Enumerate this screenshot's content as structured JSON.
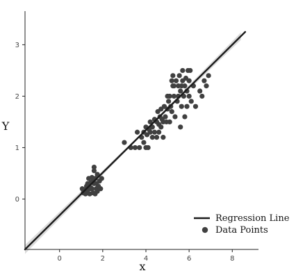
{
  "chart_data": {
    "type": "scatter",
    "title": "",
    "xlabel": "x",
    "ylabel": "Y",
    "xlim": [
      -1.6,
      9.6
    ],
    "ylim": [
      -0.98,
      3.6
    ],
    "x_ticks": [
      0,
      2,
      4,
      6,
      8
    ],
    "y_ticks": [
      0,
      1,
      2,
      3
    ],
    "grid": false,
    "legend_position": "bottom-right",
    "colors": {
      "points": "#404040",
      "line": "#1a1a1a",
      "band": "#bdbdbd"
    },
    "series": [
      {
        "name": "Regression Line",
        "kind": "line",
        "x": [
          -1.6,
          8.6
        ],
        "y": [
          -0.98,
          3.25
        ]
      },
      {
        "name": "Data Points",
        "kind": "scatter",
        "points": [
          [
            1.05,
            0.2
          ],
          [
            1.1,
            0.12
          ],
          [
            1.2,
            0.18
          ],
          [
            1.25,
            0.25
          ],
          [
            1.3,
            0.3
          ],
          [
            1.3,
            0.12
          ],
          [
            1.35,
            0.4
          ],
          [
            1.4,
            0.2
          ],
          [
            1.4,
            0.1
          ],
          [
            1.45,
            0.32
          ],
          [
            1.5,
            0.2
          ],
          [
            1.5,
            0.42
          ],
          [
            1.55,
            0.12
          ],
          [
            1.6,
            0.3
          ],
          [
            1.6,
            0.55
          ],
          [
            1.65,
            0.4
          ],
          [
            1.7,
            0.2
          ],
          [
            1.7,
            0.3
          ],
          [
            1.75,
            0.48
          ],
          [
            1.8,
            0.25
          ],
          [
            1.85,
            0.35
          ],
          [
            1.9,
            0.2
          ],
          [
            1.95,
            0.4
          ],
          [
            1.6,
            0.62
          ],
          [
            1.45,
            0.22
          ],
          [
            1.3,
            0.22
          ],
          [
            1.55,
            0.35
          ],
          [
            1.75,
            0.15
          ],
          [
            1.2,
            0.1
          ],
          [
            1.65,
            0.1
          ],
          [
            3.0,
            1.1
          ],
          [
            3.3,
            1.0
          ],
          [
            3.5,
            1.0
          ],
          [
            3.6,
            1.3
          ],
          [
            3.7,
            1.0
          ],
          [
            3.8,
            1.2
          ],
          [
            3.9,
            1.1
          ],
          [
            3.9,
            1.3
          ],
          [
            4.0,
            1.0
          ],
          [
            4.0,
            1.4
          ],
          [
            4.05,
            1.25
          ],
          [
            4.1,
            1.0
          ],
          [
            4.15,
            1.35
          ],
          [
            4.2,
            1.3
          ],
          [
            4.2,
            1.5
          ],
          [
            4.3,
            1.2
          ],
          [
            4.3,
            1.4
          ],
          [
            4.4,
            1.3
          ],
          [
            4.4,
            1.55
          ],
          [
            4.5,
            1.2
          ],
          [
            4.5,
            1.5
          ],
          [
            4.55,
            1.7
          ],
          [
            4.6,
            1.3
          ],
          [
            4.6,
            1.45
          ],
          [
            4.65,
            1.6
          ],
          [
            4.7,
            1.4
          ],
          [
            4.7,
            1.75
          ],
          [
            4.75,
            1.55
          ],
          [
            4.8,
            1.2
          ],
          [
            4.8,
            1.5
          ],
          [
            4.85,
            1.8
          ],
          [
            4.9,
            1.6
          ],
          [
            4.95,
            1.5
          ],
          [
            5.0,
            2.0
          ],
          [
            5.0,
            1.75
          ],
          [
            5.05,
            1.9
          ],
          [
            5.1,
            1.5
          ],
          [
            5.1,
            2.0
          ],
          [
            5.15,
            1.8
          ],
          [
            5.2,
            1.7
          ],
          [
            5.2,
            2.3
          ],
          [
            5.25,
            2.4
          ],
          [
            5.3,
            2.0
          ],
          [
            5.3,
            2.2
          ],
          [
            5.35,
            1.6
          ],
          [
            5.4,
            2.3
          ],
          [
            5.45,
            1.9
          ],
          [
            5.5,
            2.0
          ],
          [
            5.5,
            2.2
          ],
          [
            5.55,
            2.4
          ],
          [
            5.6,
            1.4
          ],
          [
            5.6,
            2.1
          ],
          [
            5.65,
            1.8
          ],
          [
            5.7,
            2.3
          ],
          [
            5.7,
            2.5
          ],
          [
            5.75,
            2.0
          ],
          [
            5.8,
            1.6
          ],
          [
            5.8,
            2.2
          ],
          [
            5.85,
            2.35
          ],
          [
            5.9,
            1.8
          ],
          [
            5.9,
            2.1
          ],
          [
            5.95,
            2.5
          ],
          [
            6.0,
            2.0
          ],
          [
            6.0,
            2.3
          ],
          [
            6.1,
            1.9
          ],
          [
            6.2,
            2.2
          ],
          [
            6.3,
            1.8
          ],
          [
            6.5,
            2.1
          ],
          [
            6.6,
            2.0
          ],
          [
            6.7,
            2.3
          ],
          [
            6.8,
            2.2
          ],
          [
            6.9,
            2.4
          ],
          [
            5.25,
            2.2
          ],
          [
            5.65,
            2.2
          ],
          [
            6.05,
            2.5
          ]
        ]
      }
    ]
  }
}
